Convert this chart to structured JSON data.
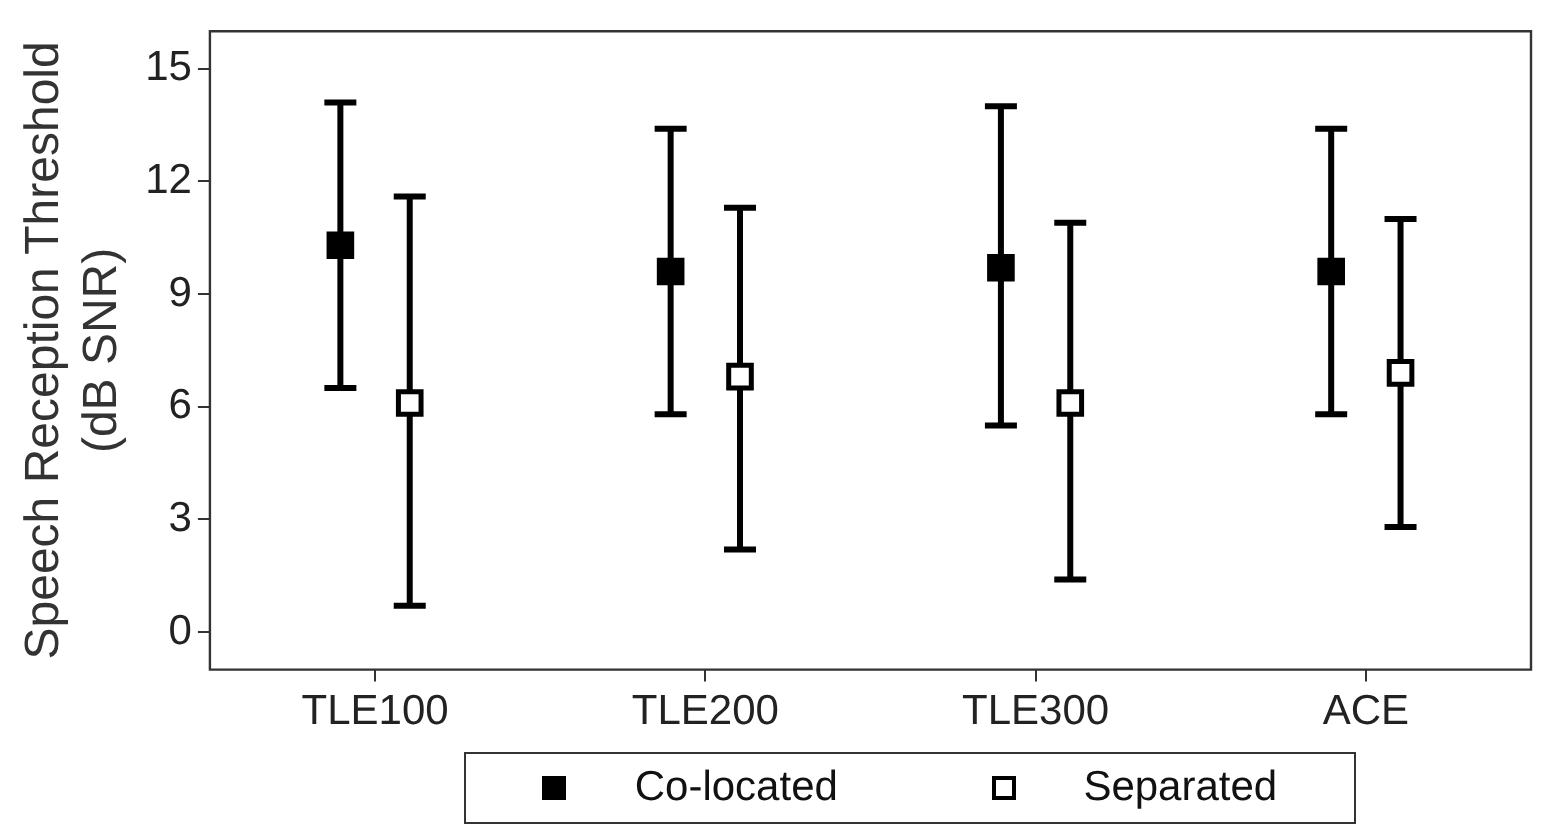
{
  "chart_data": {
    "type": "scatter",
    "ylabel": "Speech Reception Threshold (dB SNR)",
    "categories": [
      "TLE100",
      "TLE200",
      "TLE300",
      "ACE"
    ],
    "series": [
      {
        "name": "Co-located",
        "color": "#000000",
        "marker": "square",
        "values": [
          10.3,
          9.6,
          9.7,
          9.6
        ],
        "errors": [
          [
            6.5,
            14.1
          ],
          [
            5.8,
            13.4
          ],
          [
            5.5,
            14.0
          ],
          [
            5.8,
            13.4
          ]
        ]
      },
      {
        "name": "Separated",
        "color": "#000000",
        "marker": "square_open",
        "values": [
          6.1,
          6.8,
          6.1,
          6.9
        ],
        "errors": [
          [
            0.7,
            11.6
          ],
          [
            2.2,
            11.3
          ],
          [
            1.4,
            10.9
          ],
          [
            2.8,
            11.0
          ]
        ]
      }
    ],
    "ylim": [
      -1,
      16
    ],
    "yticks": [
      0,
      3,
      6,
      9,
      12,
      15
    ],
    "grid": false,
    "legend": "bottom"
  }
}
